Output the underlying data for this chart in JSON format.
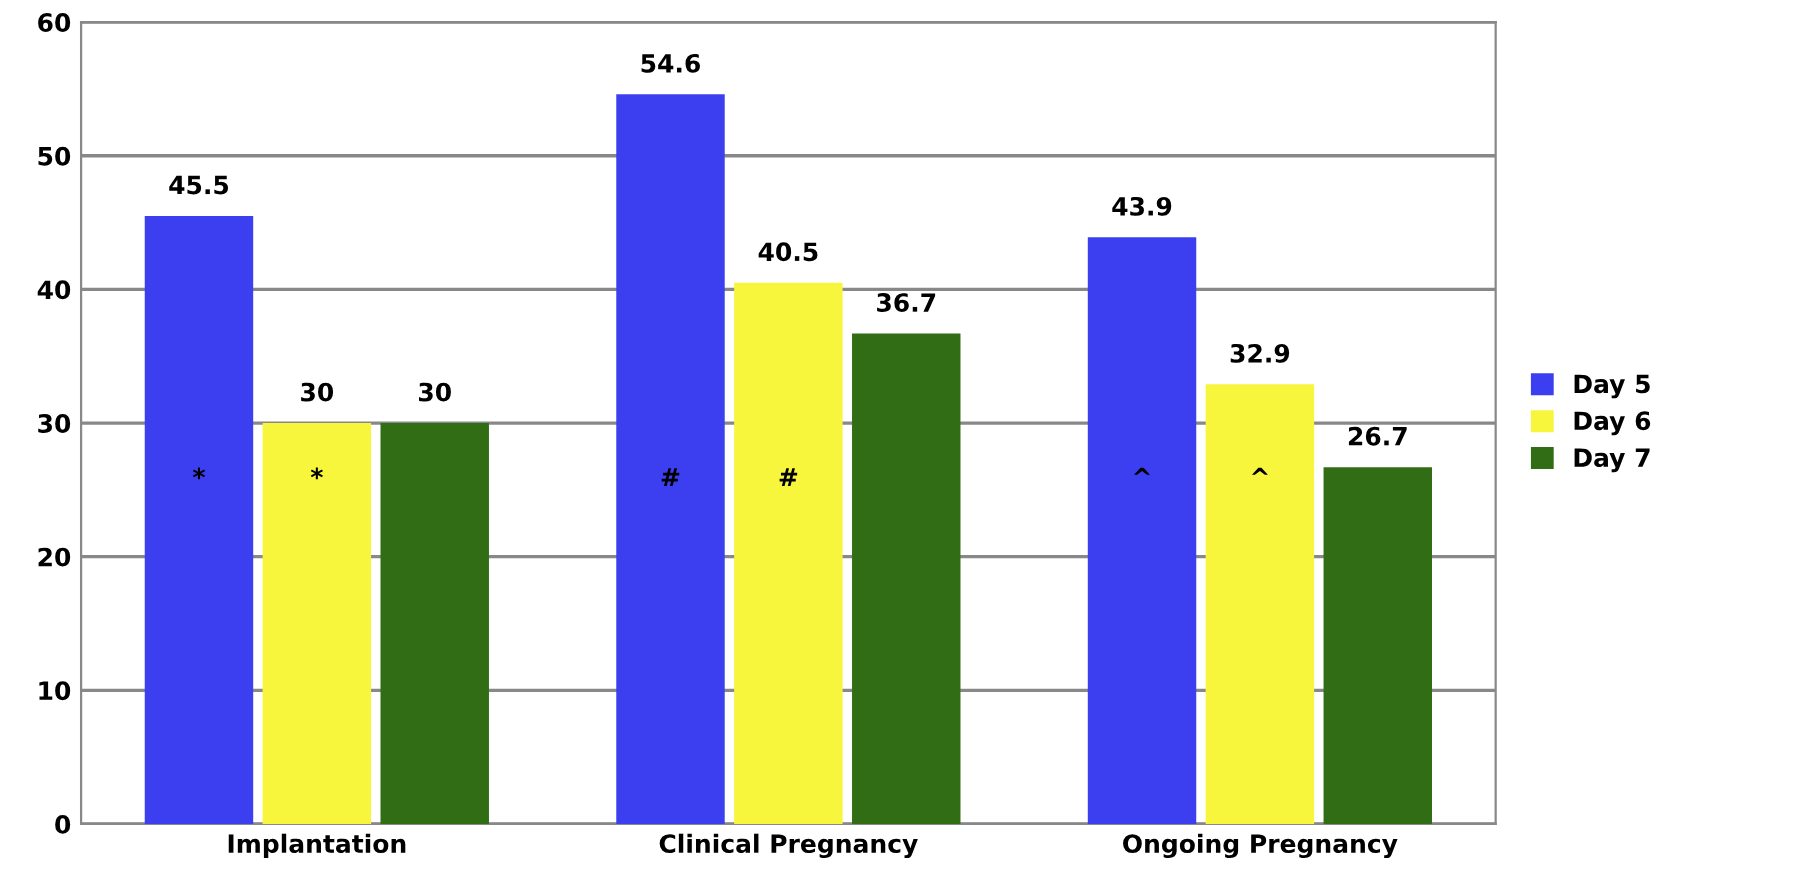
{
  "chart_data": {
    "type": "bar",
    "categories": [
      "Implantation",
      "Clinical Pregnancy",
      "Ongoing Pregnancy"
    ],
    "series": [
      {
        "name": "Day 5",
        "color": "#3c3ff0",
        "values": [
          45.5,
          54.6,
          43.9
        ]
      },
      {
        "name": "Day 6",
        "color": "#f7f53c",
        "values": [
          30,
          40.5,
          32.9
        ]
      },
      {
        "name": "Day 7",
        "color": "#316d14",
        "values": [
          30,
          36.7,
          26.7
        ]
      }
    ],
    "ylim": [
      0,
      60
    ],
    "yticks": [
      0,
      10,
      20,
      30,
      40,
      50,
      60
    ],
    "grid": "y",
    "legend": "right",
    "data_labels": true,
    "annotations": [
      "*",
      "*",
      "#",
      "#",
      "^",
      "^"
    ]
  }
}
